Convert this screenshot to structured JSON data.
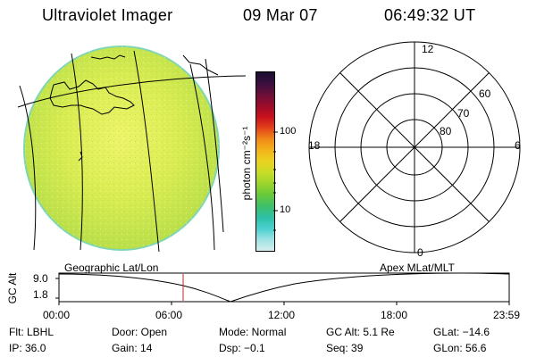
{
  "header": {
    "title": "Ultraviolet Imager",
    "date": "09 Mar 07",
    "time": "06:49:32 UT"
  },
  "colorbar": {
    "unit_label": "photon cm⁻²s⁻¹",
    "ticks": [
      "100",
      "10"
    ],
    "colors": [
      "#1a0f2e",
      "#3a0f3f",
      "#6a0f3a",
      "#9b0b2a",
      "#c8101e",
      "#e2431a",
      "#f08a18",
      "#f4b41a",
      "#e9d320",
      "#c8dd28",
      "#9bd42c",
      "#66c93a",
      "#3fbf6a",
      "#2ec0a6",
      "#4ad0cf",
      "#9fe2e4",
      "#d7eeee"
    ]
  },
  "polar": {
    "mlt_labels": {
      "top": "12",
      "left": "18",
      "right": "6",
      "bottom": "0"
    },
    "lat_labels": [
      "60",
      "70",
      "80"
    ]
  },
  "timeline": {
    "left_label": "Geographic Lat/Lon",
    "right_label": "Apex  MLat/MLT",
    "yaxis_label": "GC Alt",
    "y_ticks": [
      "9.0",
      "1.8"
    ],
    "x_ticks": [
      "00:00",
      "06:00",
      "12:00",
      "18:00",
      "23:59"
    ]
  },
  "info": {
    "flt": "Flt: LBHL",
    "ip": "IP: 36.0",
    "door": "Door: Open",
    "gain": "Gain: 14",
    "mode": "Mode: Normal",
    "dsp": "Dsp:   −0.1",
    "gcalt": "GC Alt: 5.1 Re",
    "seq": "Seq: 39",
    "glat": "GLat: −14.6",
    "glon": "GLon:  56.6"
  },
  "colors": {
    "disk": "#d6ea4e",
    "marker": "#c0281a"
  }
}
